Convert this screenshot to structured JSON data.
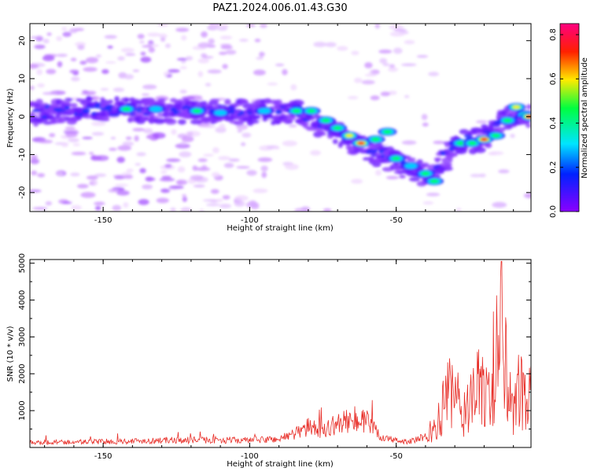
{
  "title": "PAZ1.2024.006.01.43.G30",
  "chart_data": [
    {
      "type": "heatmap",
      "xlabel": "Height of straight line (km)",
      "ylabel": "Frequency (Hz)",
      "xlim": [
        -175,
        -4
      ],
      "ylim": [
        -25,
        24.5
      ],
      "xticks": [
        -150,
        -100,
        -50
      ],
      "yticks": [
        -20,
        -10,
        0,
        10,
        20
      ],
      "colorbar": {
        "label": "Normalized spectral amplitude",
        "range": [
          0,
          0.85
        ],
        "ticks": [
          0.0,
          0.2,
          0.4,
          0.6,
          0.8
        ],
        "colormap": "gist_rainbow"
      },
      "ridge": {
        "x": [
          -175,
          -150,
          -130,
          -115,
          -100,
          -85,
          -75,
          -65,
          -55,
          -45,
          -38,
          -30,
          -20,
          -12,
          -4
        ],
        "frequency_hz": [
          1,
          2,
          1.5,
          1.5,
          1,
          1.5,
          -2,
          -7,
          -10,
          -14,
          -16,
          -7,
          -6,
          0,
          0
        ]
      }
    },
    {
      "type": "line",
      "xlabel": "Height of straight line (km)",
      "ylabel": "SNR (10 * v/v)",
      "xlim": [
        -175,
        -4
      ],
      "ylim": [
        0,
        5100
      ],
      "xticks": [
        -150,
        -100,
        -50
      ],
      "yticks": [
        1000,
        2000,
        3000,
        4000,
        5000
      ],
      "color": "#e8302a",
      "series": [
        {
          "x": [
            -175,
            -160,
            -145,
            -130,
            -115,
            -100,
            -90,
            -85,
            -80,
            -75,
            -70,
            -65,
            -60,
            -55,
            -50,
            -45,
            -40,
            -35,
            -32,
            -28,
            -25,
            -20,
            -18,
            -16,
            -14,
            -12,
            -10,
            -8,
            -6,
            -4
          ],
          "y": [
            150,
            160,
            180,
            210,
            220,
            210,
            250,
            400,
            600,
            500,
            700,
            800,
            750,
            300,
            200,
            180,
            300,
            1200,
            2400,
            1500,
            1800,
            2500,
            2000,
            3500,
            5000,
            2000,
            1200,
            2500,
            1700,
            2100
          ]
        }
      ]
    }
  ]
}
